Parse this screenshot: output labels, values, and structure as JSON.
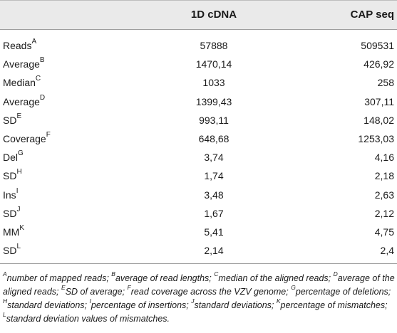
{
  "table": {
    "headers": [
      "",
      "1D cDNA",
      "CAP seq"
    ],
    "rows": [
      {
        "label": "Reads",
        "sup": "A",
        "v1": "57888",
        "v2": "509531"
      },
      {
        "label": "Average",
        "sup": "B",
        "v1": "1470,14",
        "v2": "426,92"
      },
      {
        "label": "Median",
        "sup": "C",
        "v1": "1033",
        "v2": "258"
      },
      {
        "label": "Average",
        "sup": "D",
        "v1": "1399,43",
        "v2": "307,11"
      },
      {
        "label": "SD",
        "sup": "E",
        "v1": "993,11",
        "v2": "148,02"
      },
      {
        "label": "Coverage",
        "sup": "F",
        "v1": "648,68",
        "v2": "1253,03"
      },
      {
        "label": "Del",
        "sup": "G",
        "v1": "3,74",
        "v2": "4,16"
      },
      {
        "label": "SD",
        "sup": "H",
        "v1": "1,74",
        "v2": "2,18"
      },
      {
        "label": "Ins",
        "sup": "I",
        "v1": "3,48",
        "v2": "2,63"
      },
      {
        "label": "SD",
        "sup": "J",
        "v1": "1,67",
        "v2": "2,12"
      },
      {
        "label": "MM",
        "sup": "K",
        "v1": "5,41",
        "v2": "4,75"
      },
      {
        "label": "SD",
        "sup": "L",
        "v1": "2,14",
        "v2": "2,4"
      }
    ]
  },
  "footnotes": [
    {
      "sup": "A",
      "text": "number of mapped reads; "
    },
    {
      "sup": "B",
      "text": "average of read lengths; "
    },
    {
      "sup": "C",
      "text": "median of the aligned reads; "
    },
    {
      "sup": "D",
      "text": "average of the aligned reads; "
    },
    {
      "sup": "E",
      "text": "SD of average; "
    },
    {
      "sup": "F",
      "text": "read coverage across the VZV genome; "
    },
    {
      "sup": "G",
      "text": "percentage of deletions; "
    },
    {
      "sup": "H",
      "text": "standard deviations; "
    },
    {
      "sup": "I",
      "text": "percentage of insertions; "
    },
    {
      "sup": "J",
      "text": "standard deviations; "
    },
    {
      "sup": "K",
      "text": "percentage of mismatches; "
    },
    {
      "sup": "L",
      "text": "standard deviation values of mismatches."
    }
  ]
}
